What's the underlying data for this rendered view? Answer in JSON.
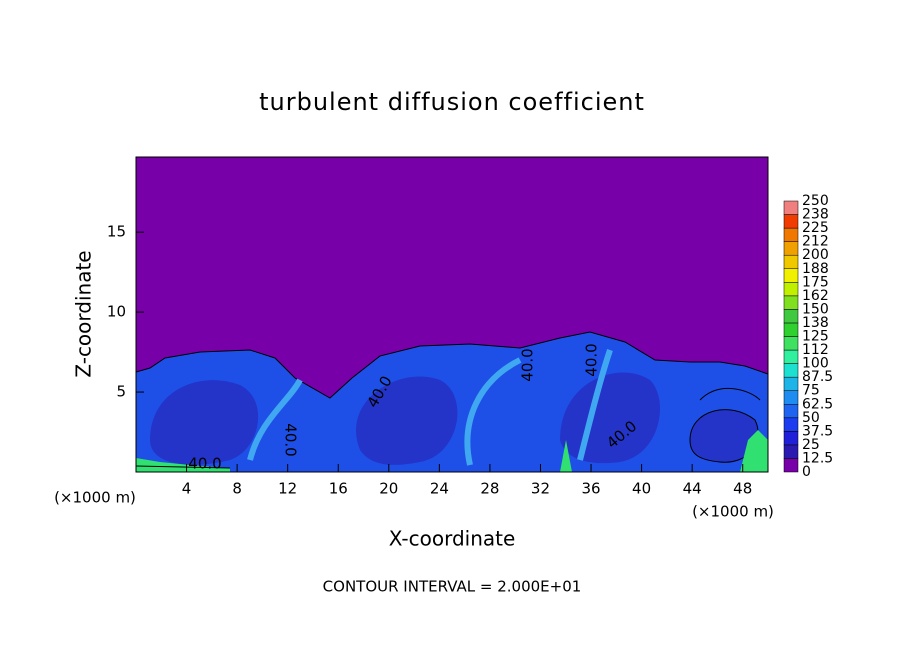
{
  "chart_data": {
    "type": "contour",
    "title": "turbulent diffusion coefficient",
    "xlabel": "X-coordinate",
    "ylabel": "Z-coordinate",
    "x_unit_labels": [
      "(×1000 m)",
      "(×1000 m)"
    ],
    "footer": "CONTOUR INTERVAL = 2.000E+01",
    "contour_labels": [
      "40.0",
      "40.0",
      "40.0",
      "40.0",
      "40.0",
      "40.0"
    ],
    "xlim": [
      0,
      50
    ],
    "ylim": [
      0,
      19.7
    ],
    "xticks": [
      4,
      8,
      12,
      16,
      20,
      24,
      28,
      32,
      36,
      40,
      44,
      48
    ],
    "yticks": [
      5,
      10,
      15
    ],
    "colorbar": {
      "levels": [
        0,
        12.5,
        25,
        37.5,
        50,
        62.5,
        75,
        87.5,
        100,
        112,
        125,
        138,
        150,
        162,
        175,
        188,
        200,
        212,
        225,
        238,
        250
      ],
      "colors": [
        "#7800a8",
        "#2a1ab0",
        "#2020d8",
        "#1c3cf0",
        "#1e64f0",
        "#1e8cf0",
        "#1eb4e8",
        "#1ee0d0",
        "#30f0a0",
        "#40e060",
        "#30d030",
        "#40c840",
        "#80e020",
        "#c0f000",
        "#f0f000",
        "#f0c800",
        "#f0a000",
        "#f07800",
        "#f03c00",
        "#f08080"
      ]
    }
  }
}
